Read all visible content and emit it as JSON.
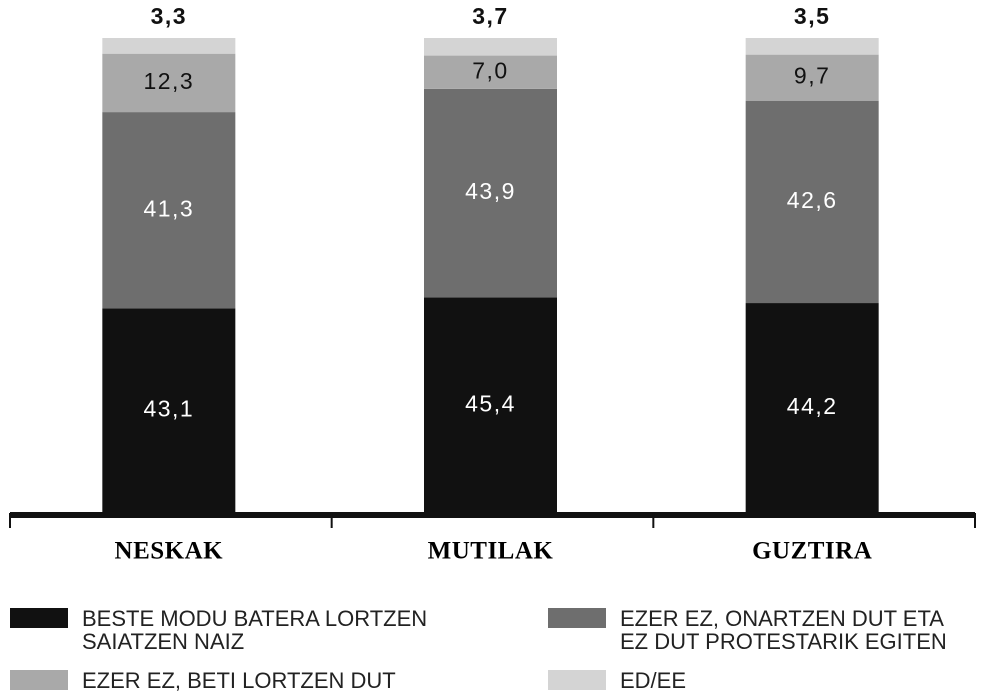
{
  "chart_data": {
    "type": "stacked_bar",
    "categories": [
      "NESKAK",
      "MUTILAK",
      "GUZTIRA"
    ],
    "ylim": [
      0,
      100
    ],
    "series": [
      {
        "name": "BESTE MODU BATERA LORTZEN\nSAIATZEN NAIZ",
        "color": "#111111",
        "values": [
          43.1,
          45.4,
          44.2
        ],
        "value_labels": [
          "43,1",
          "45,4",
          "44,2"
        ]
      },
      {
        "name": "EZER EZ, ONARTZEN DUT ETA\nEZ DUT PROTESTARIK EGITEN",
        "color": "#6e6e6e",
        "values": [
          41.3,
          43.9,
          42.6
        ],
        "value_labels": [
          "41,3",
          "43,9",
          "42,6"
        ]
      },
      {
        "name": "EZER EZ, BETI LORTZEN DUT",
        "color": "#a9a9a9",
        "values": [
          12.3,
          7.0,
          9.7
        ],
        "value_labels": [
          "12,3",
          "7,0",
          "9,7"
        ]
      },
      {
        "name": "ED/EE",
        "color": "#d4d4d4",
        "values": [
          3.3,
          3.7,
          3.5
        ],
        "value_labels": [
          "3,3",
          "3,7",
          "3,5"
        ]
      }
    ]
  }
}
